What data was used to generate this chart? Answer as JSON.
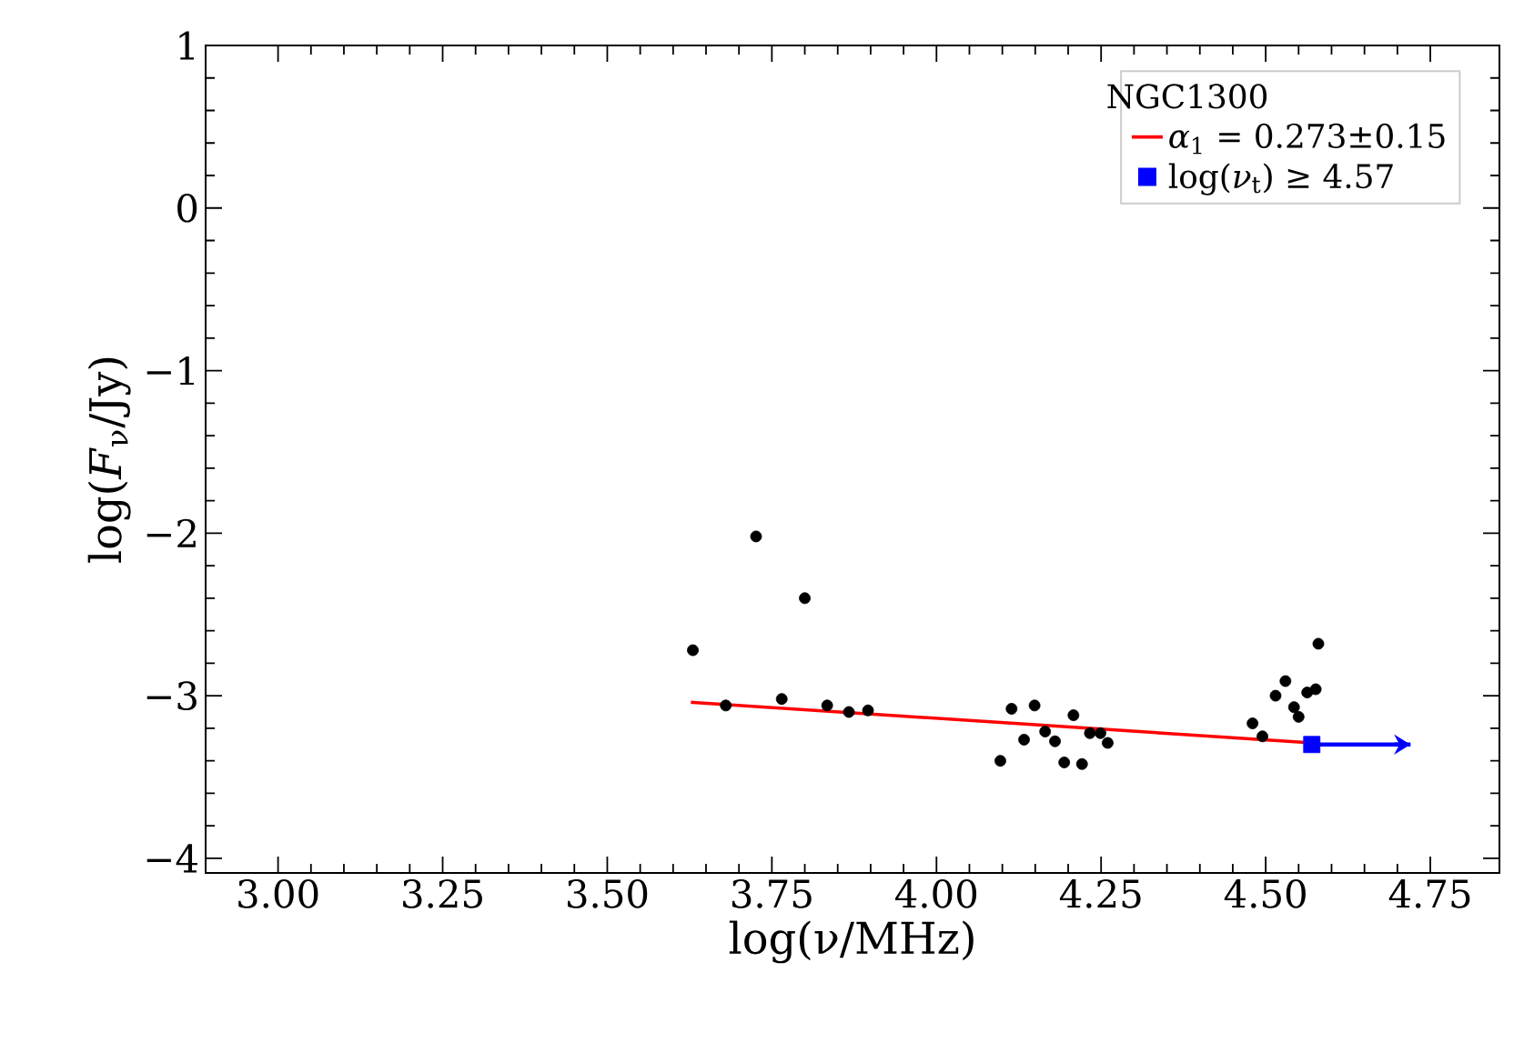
{
  "chart_data": {
    "type": "scatter",
    "xlabel": "log(ν/MHz)",
    "ylabel": "log(*F*$_{ν}$/Jy)",
    "legend_title": "NGC1300",
    "xlim": [
      2.89,
      4.855
    ],
    "ylim": [
      -4.09,
      1
    ],
    "xticks": [
      {
        "value": 3.0,
        "label": "3.00"
      },
      {
        "value": 3.25,
        "label": "3.25"
      },
      {
        "value": 3.5,
        "label": "3.50"
      },
      {
        "value": 3.75,
        "label": "3.75"
      },
      {
        "value": 4.0,
        "label": "4.00"
      },
      {
        "value": 4.25,
        "label": "4.25"
      },
      {
        "value": 4.5,
        "label": "4.50"
      },
      {
        "value": 4.75,
        "label": "4.75"
      }
    ],
    "yticks": [
      {
        "value": -4,
        "label": "−4"
      },
      {
        "value": -3,
        "label": "−3"
      },
      {
        "value": -2,
        "label": "−2"
      },
      {
        "value": -1,
        "label": "−1"
      },
      0,
      1
    ],
    "legend": "top right",
    "grid": false,
    "series": [
      {
        "marker": "circle",
        "color": "#000000",
        "x": [
          3.63,
          3.68,
          3.726,
          3.765,
          3.8,
          3.834,
          3.867,
          3.896,
          4.097,
          4.114,
          4.133,
          4.149,
          4.165,
          4.18,
          4.194,
          4.208,
          4.221,
          4.233,
          4.249,
          4.26,
          4.48,
          4.495,
          4.515,
          4.53,
          4.543,
          4.55,
          4.563,
          4.576,
          4.58
        ],
        "values": [
          -2.72,
          -3.06,
          -2.02,
          -3.02,
          -2.4,
          -3.06,
          -3.1,
          -3.09,
          -3.4,
          -3.08,
          -3.27,
          -3.06,
          -3.22,
          -3.28,
          -3.41,
          -3.12,
          -3.42,
          -3.23,
          -3.23,
          -3.29,
          -3.17,
          -3.25,
          -3.0,
          -2.91,
          -3.07,
          -3.13,
          -2.98,
          -2.96,
          -2.68
        ]
      },
      {
        "type": "line",
        "name": "*α*$_{1}$ =  0.273±0.15",
        "color": "#ff0000",
        "line_style": "solid",
        "x": [
          3.627,
          4.571
        ],
        "values": [
          -3.04,
          -3.29
        ]
      },
      {
        "type": "scatter",
        "name": "log(*ν*$_{t}$)  ≥  4.57",
        "marker": "square",
        "color": "#0000ff",
        "x": [
          4.57
        ],
        "values": [
          -3.3
        ],
        "xerrors": [
          [
            4.57,
            4.72
          ]
        ]
      }
    ]
  }
}
